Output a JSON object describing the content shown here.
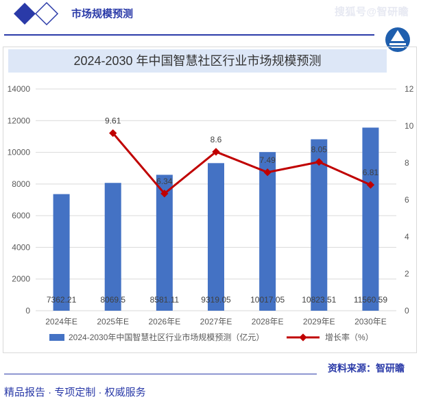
{
  "header": {
    "title": "市场规模预测",
    "watermark": "搜狐号@智研瞻"
  },
  "footer": {
    "source": "资料来源：智研瞻",
    "tagline": "精品报告 ·  专项定制 · 权威服务"
  },
  "colors": {
    "bar": "#4472c4",
    "line": "#c00000",
    "brand": "#2a3aa8"
  },
  "chart_data": {
    "type": "bar+line",
    "title": "2024-2030 年中国智慧社区行业市场规模预测",
    "categories": [
      "2024年E",
      "2025年E",
      "2026年E",
      "2027年E",
      "2028年E",
      "2029年E",
      "2030年E"
    ],
    "series": [
      {
        "name": "2024-2030年中国智慧社区行业市场规模预测（亿元）",
        "type": "bar",
        "axis": "left",
        "values": [
          7362.21,
          8069.5,
          8581.11,
          9319.05,
          10017.05,
          10823.51,
          11560.59
        ],
        "labels": [
          "7362.21",
          "8069.5",
          "8581.11",
          "9319.05",
          "10017.05",
          "10823.51",
          "11560.59"
        ]
      },
      {
        "name": "增长率（%）",
        "type": "line",
        "axis": "right",
        "values": [
          null,
          9.61,
          6.34,
          8.6,
          7.49,
          8.05,
          6.81
        ],
        "labels": [
          "",
          "9.61",
          "6.34",
          "8.6",
          "7.49",
          "8.05",
          "6.81"
        ]
      }
    ],
    "y_left": {
      "min": 0,
      "max": 14000,
      "ticks": [
        "0",
        "2000",
        "4000",
        "6000",
        "8000",
        "10000",
        "12000",
        "14000"
      ]
    },
    "y_right": {
      "min": 0,
      "max": 12,
      "ticks": [
        "0",
        "2",
        "4",
        "6",
        "8",
        "10",
        "12"
      ]
    },
    "grid": true,
    "legend": "bottom"
  }
}
